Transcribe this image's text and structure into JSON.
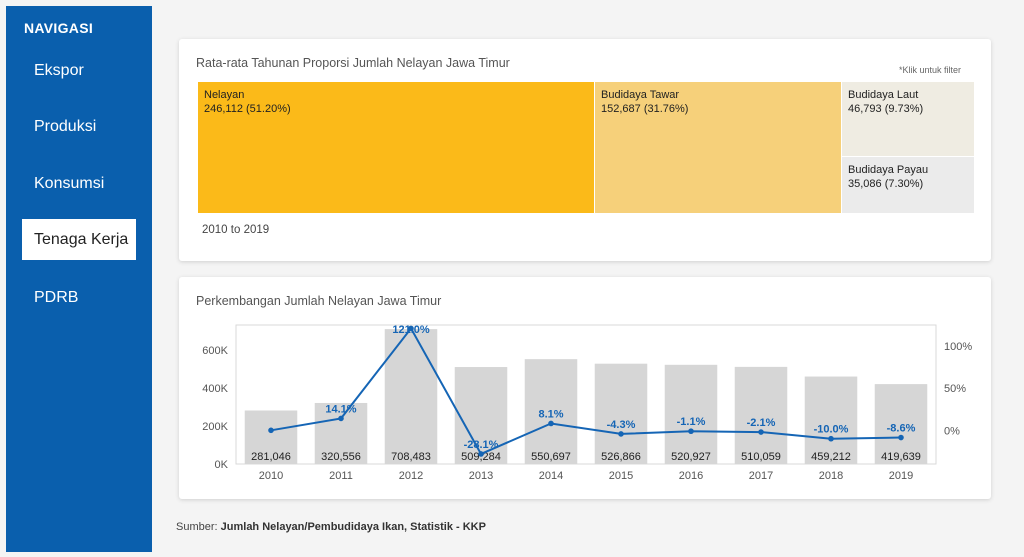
{
  "nav": {
    "title": "NAVIGASI",
    "items": [
      {
        "label": "Ekspor",
        "active": false
      },
      {
        "label": "Produksi",
        "active": false
      },
      {
        "label": "Konsumsi",
        "active": false
      },
      {
        "label": "Tenaga Kerja",
        "active": true
      },
      {
        "label": "PDRB",
        "active": false
      }
    ]
  },
  "treemap": {
    "title": "Rata-rata Tahunan Proporsi Jumlah Nelayan Jawa Timur",
    "hint": "*Klik untuk filter",
    "range": "2010 to 2019",
    "cells": [
      {
        "name": "Nelayan",
        "value": "246,112 (51.20%)",
        "color": "#fbba19"
      },
      {
        "name": "Budidaya Tawar",
        "value": "152,687 (31.76%)",
        "color": "#f6d07a"
      },
      {
        "name": "Budidaya Laut",
        "value": "46,793 (9.73%)",
        "color": "#efece2"
      },
      {
        "name": "Budidaya Payau",
        "value": "35,086 (7.30%)",
        "color": "#ebebeb"
      }
    ]
  },
  "trend": {
    "title": "Perkembangan Jumlah Nelayan Jawa Timur"
  },
  "chart_data": {
    "type": "bar",
    "categories": [
      "2010",
      "2011",
      "2012",
      "2013",
      "2014",
      "2015",
      "2016",
      "2017",
      "2018",
      "2019"
    ],
    "values": [
      281046,
      320556,
      708483,
      509284,
      550697,
      526866,
      520927,
      510059,
      459212,
      419639
    ],
    "value_labels": [
      "281,046",
      "320,556",
      "708,483",
      "509,284",
      "550,697",
      "526,866",
      "520,927",
      "510,059",
      "459,212",
      "419,639"
    ],
    "growth": [
      0,
      14.1,
      121.0,
      -28.1,
      8.1,
      -4.3,
      -1.1,
      -2.1,
      -10.0,
      -8.6
    ],
    "growth_labels": [
      "",
      "14.1%",
      "121.0%",
      "-28.1%",
      "8.1%",
      "-4.3%",
      "-1.1%",
      "-2.1%",
      "-10.0%",
      "-8.6%"
    ],
    "ylim": [
      0,
      730000
    ],
    "yticks": [
      0,
      200000,
      400000,
      600000
    ],
    "ytick_labels": [
      "0K",
      "200K",
      "400K",
      "600K"
    ],
    "y2lim": [
      -40,
      125
    ],
    "y2ticks": [
      0,
      50,
      100
    ],
    "y2tick_labels": [
      "0%",
      "50%",
      "100%"
    ],
    "bar_color": "#d6d6d6",
    "line_color": "#1565b5"
  },
  "footer": {
    "prefix": "Sumber: ",
    "source": "Jumlah Nelayan/Pembudidaya Ikan, Statistik - KKP"
  }
}
